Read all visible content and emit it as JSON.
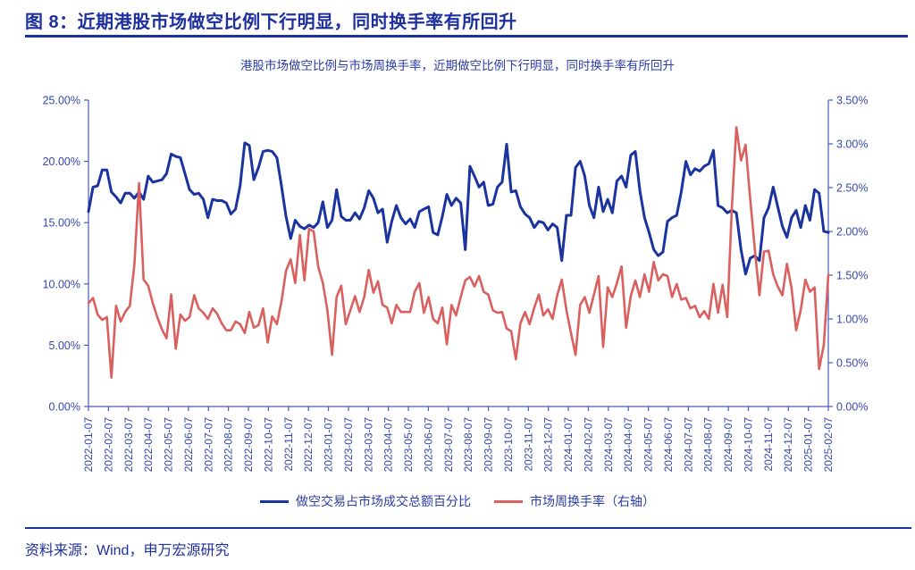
{
  "figure": {
    "title": "图 8：近期港股市场做空比例下行明显，同时换手率有所回升",
    "source": "资料来源：Wind，申万宏源研究"
  },
  "colors": {
    "accent_navy": "#1e2f9e",
    "line_blue": "#1a339e",
    "line_red": "#d9605e",
    "axis_line": "#4a5ab8",
    "axis_label": "#3747ac"
  },
  "chart_data": {
    "type": "line",
    "title": "港股市场做空比例与市场周换手率，近期做空比例下行明显，同时换手率有所回升",
    "grid": false,
    "legend_position": "bottom",
    "x_tick_labels": [
      "2022-01-07",
      "2022-02-07",
      "2022-03-07",
      "2022-04-07",
      "2022-05-07",
      "2022-06-07",
      "2022-07-07",
      "2022-08-07",
      "2022-09-07",
      "2022-10-07",
      "2022-11-07",
      "2022-12-07",
      "2023-01-07",
      "2023-02-07",
      "2023-03-07",
      "2023-04-07",
      "2023-05-07",
      "2023-06-07",
      "2023-07-07",
      "2023-08-07",
      "2023-09-07",
      "2023-10-07",
      "2023-11-07",
      "2023-12-07",
      "2024-01-07",
      "2024-02-07",
      "2024-03-07",
      "2024-04-07",
      "2024-05-07",
      "2024-06-07",
      "2024-07-07",
      "2024-08-07",
      "2024-09-07",
      "2024-10-07",
      "2024-11-07",
      "2024-12-07",
      "2025-01-07",
      "2025-02-07"
    ],
    "left_axis": {
      "min": 0,
      "max": 25,
      "step": 5,
      "ticks": [
        "25.00%",
        "20.00%",
        "15.00%",
        "10.00%",
        "5.00%",
        "0.00%"
      ]
    },
    "right_axis": {
      "min": 0,
      "max": 3.5,
      "step": 0.5,
      "ticks": [
        "3.50%",
        "3.00%",
        "2.50%",
        "2.00%",
        "1.50%",
        "1.00%",
        "0.50%",
        "0.00%"
      ]
    },
    "series": [
      {
        "name": "做空交易占市场成交总额百分比",
        "axis": "left",
        "color": "#1a339e",
        "unit": "%",
        "values": [
          15.9,
          17.9,
          18.0,
          19.3,
          19.3,
          17.5,
          17.1,
          16.6,
          17.4,
          17.4,
          17.0,
          17.5,
          16.9,
          18.8,
          18.3,
          18.4,
          18.5,
          19.0,
          20.6,
          20.4,
          20.3,
          19.0,
          17.7,
          17.3,
          17.4,
          16.9,
          15.4,
          16.9,
          16.8,
          16.8,
          16.6,
          15.7,
          16.1,
          18.0,
          21.5,
          21.3,
          18.5,
          19.5,
          20.8,
          20.9,
          20.8,
          20.3,
          18.0,
          15.5,
          13.7,
          15.2,
          14.7,
          14.5,
          14.8,
          14.6,
          15.0,
          16.7,
          14.6,
          15.2,
          17.7,
          15.5,
          15.2,
          15.2,
          15.8,
          15.3,
          16.2,
          17.6,
          17.0,
          15.8,
          16.1,
          13.4,
          15.1,
          16.4,
          15.4,
          14.9,
          15.3,
          14.6,
          15.9,
          16.1,
          16.3,
          14.2,
          14.0,
          15.5,
          17.3,
          16.4,
          17.0,
          16.6,
          12.8,
          19.6,
          18.8,
          17.9,
          18.3,
          16.4,
          16.5,
          17.9,
          18.3,
          21.4,
          17.5,
          17.6,
          16.3,
          15.7,
          15.4,
          14.6,
          15.1,
          15.0,
          14.4,
          14.9,
          14.6,
          11.9,
          15.6,
          15.6,
          19.5,
          20.0,
          18.8,
          16.4,
          15.4,
          17.9,
          15.9,
          16.9,
          15.8,
          18.4,
          18.8,
          17.9,
          20.5,
          20.8,
          17.6,
          15.4,
          14.2,
          12.8,
          12.3,
          12.6,
          15.1,
          15.4,
          15.6,
          17.5,
          20.0,
          18.9,
          19.4,
          19.2,
          19.6,
          19.8,
          20.9,
          16.4,
          16.2,
          15.8,
          16.0,
          15.8,
          12.8,
          10.8,
          12.1,
          12.3,
          11.9,
          15.4,
          16.2,
          17.9,
          16.3,
          14.7,
          13.8,
          15.4,
          16.0,
          14.6,
          16.4,
          15.2,
          17.7,
          17.4,
          14.3,
          14.2
        ]
      },
      {
        "name": "市场周换手率（右轴）",
        "axis": "right",
        "color": "#d9605e",
        "unit": "%",
        "values": [
          1.18,
          1.24,
          1.05,
          0.99,
          1.02,
          0.33,
          1.15,
          0.97,
          1.08,
          1.15,
          1.62,
          2.55,
          1.45,
          1.38,
          1.18,
          1.02,
          0.88,
          0.78,
          1.28,
          0.66,
          1.05,
          0.98,
          1.02,
          1.27,
          1.12,
          1.07,
          1.0,
          1.12,
          1.06,
          0.95,
          0.87,
          0.87,
          0.97,
          0.94,
          0.84,
          1.08,
          0.9,
          0.93,
          1.12,
          0.73,
          1.03,
          0.94,
          1.2,
          1.55,
          1.68,
          1.41,
          1.96,
          1.44,
          2.03,
          2.0,
          1.6,
          1.41,
          1.1,
          0.59,
          1.25,
          1.38,
          0.94,
          1.1,
          1.26,
          1.08,
          1.25,
          1.56,
          1.3,
          1.43,
          1.16,
          1.13,
          0.95,
          1.16,
          1.08,
          1.08,
          1.08,
          1.31,
          1.41,
          1.07,
          1.25,
          1.0,
          0.95,
          1.13,
          0.71,
          1.16,
          1.04,
          1.25,
          1.44,
          1.48,
          1.37,
          1.49,
          1.31,
          1.28,
          1.1,
          1.07,
          1.08,
          0.89,
          0.86,
          0.54,
          0.95,
          1.08,
          0.94,
          1.13,
          1.28,
          1.04,
          1.11,
          1.0,
          1.27,
          1.45,
          1.1,
          0.84,
          0.59,
          1.16,
          1.25,
          1.07,
          1.28,
          1.49,
          0.68,
          1.36,
          1.25,
          1.41,
          1.6,
          0.9,
          1.26,
          1.44,
          1.25,
          1.51,
          1.31,
          1.65,
          1.44,
          1.51,
          1.49,
          1.25,
          1.4,
          1.22,
          1.24,
          1.12,
          1.15,
          1.02,
          1.09,
          1.0,
          1.4,
          1.07,
          1.39,
          1.02,
          2.26,
          3.19,
          2.81,
          2.99,
          2.37,
          1.8,
          1.27,
          1.77,
          1.78,
          1.51,
          1.37,
          1.27,
          1.63,
          1.35,
          0.87,
          1.1,
          1.45,
          1.31,
          1.36,
          0.43,
          0.7,
          1.5
        ]
      }
    ]
  }
}
